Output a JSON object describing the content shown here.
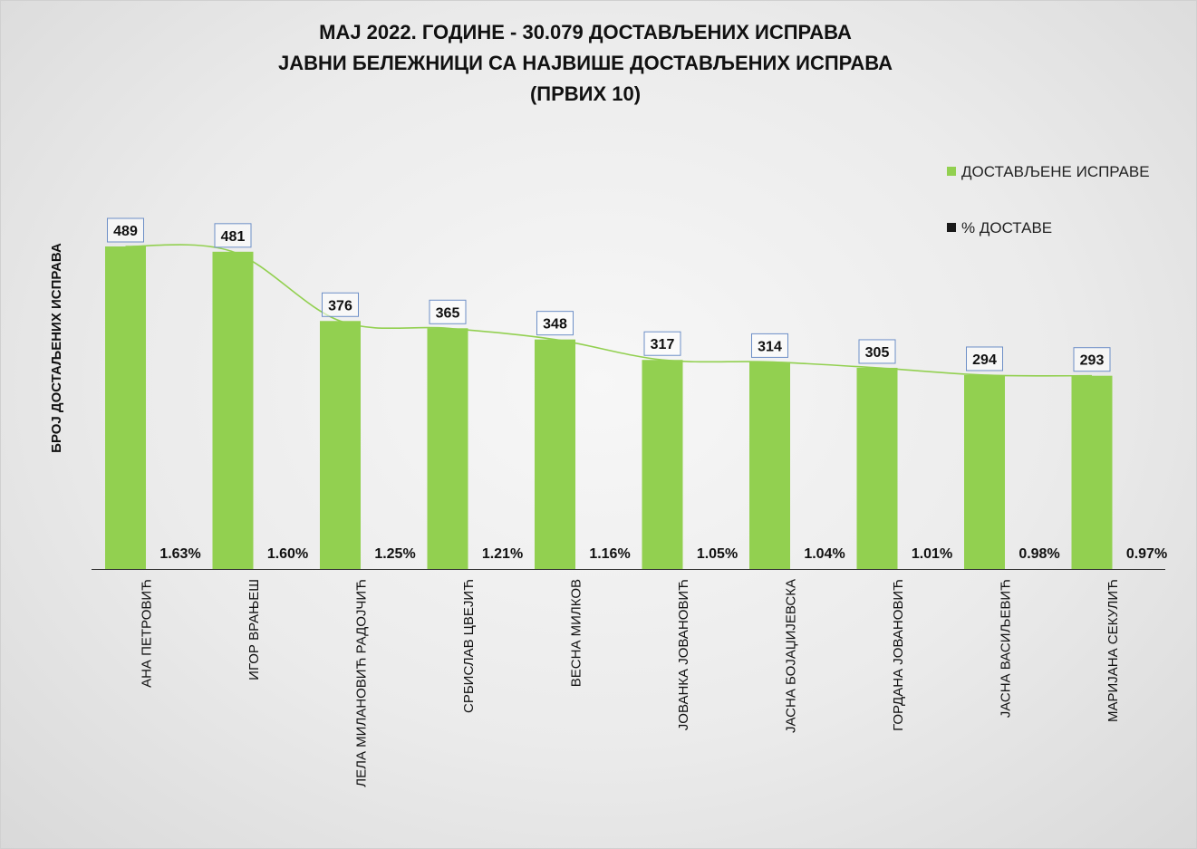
{
  "title_lines": [
    "МАЈ 2022. ГОДИНЕ - 30.079 ДОСТАВЉЕНИХ ИСПРАВА",
    "ЈАВНИ БЕЛЕЖНИЦИ СА НАЈВИШЕ ДОСТАВЉЕНИХ ИСПРАВА",
    "(ПРВИХ 10)"
  ],
  "colors": {
    "bar": "#92d050",
    "percent_series": "#1a1a1a",
    "trendline": "#92d050",
    "label_border": "#6d8fc7"
  },
  "chart_data": {
    "type": "bar",
    "title": "МАЈ 2022. ГОДИНЕ - 30.079 ДОСТАВЉЕНИХ ИСПРАВА / ЈАВНИ БЕЛЕЖНИЦИ СА НАЈВИШЕ ДОСТАВЉЕНИХ ИСПРАВА / (ПРВИХ 10)",
    "ylabel": "БРОЈ ДОСТАЉЕНИХ ИСПРАВА",
    "xlabel": "",
    "ylim": [
      0,
      550
    ],
    "grid": false,
    "legend_position": "right",
    "categories": [
      "АНА ПЕТРОВИЋ",
      "ИГОР ВРАЊЕШ",
      "ЛЕЛА МИЛАНОВИЋ РАДОЈЧИЋ",
      "СРБИСЛАВ ЦВЕЈИЋ",
      "ВЕСНА МИЛКОВ",
      "ЈОВАНКА ЈОВАНОВИЋ",
      "ЈАСНА БОЈАЏИЈЕВСКА",
      "ГОРДАНА ЈОВАНОВИЋ",
      "ЈАСНА ВАСИЉЕВИЋ",
      "МАРИЈАНА СЕКУЛИЋ"
    ],
    "series": [
      {
        "name": "ДОСТАВЉЕНЕ ИСПРАВЕ",
        "values": [
          489,
          481,
          376,
          365,
          348,
          317,
          314,
          305,
          294,
          293
        ],
        "labels": [
          "489",
          "481",
          "376",
          "365",
          "348",
          "317",
          "314",
          "305",
          "294",
          "293"
        ]
      },
      {
        "name": "% ДОСТАВЕ",
        "values": [
          1.63,
          1.6,
          1.25,
          1.21,
          1.16,
          1.05,
          1.04,
          1.01,
          0.98,
          0.97
        ],
        "labels": [
          "1.63%",
          "1.60%",
          "1.25%",
          "1.21%",
          "1.16%",
          "1.05%",
          "1.04%",
          "1.01%",
          "0.98%",
          "0.97%"
        ]
      }
    ],
    "trendline": "smoothed line through bar tops"
  }
}
